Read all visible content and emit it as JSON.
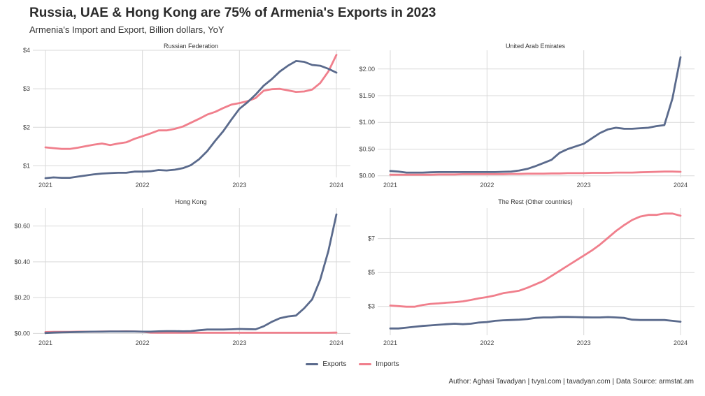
{
  "title": "Russia, UAE & Hong Kong are 75% of Armenia's Exports in 2023",
  "subtitle": "Armenia's Import and Export, Billion dollars, YoY",
  "caption": "Author: Aghasi Tavadyan   |   tvyal.com   |   tavadyan.com   |   Data Source: armstat.am",
  "legend": [
    {
      "name": "Exports",
      "color": "#5a6a8c"
    },
    {
      "name": "Imports",
      "color": "#f07f8c"
    }
  ],
  "chart_data": [
    {
      "type": "line",
      "title": "Russian Federation",
      "x": [
        2021,
        2021.083,
        2021.167,
        2021.25,
        2021.333,
        2021.417,
        2021.5,
        2021.583,
        2021.667,
        2021.75,
        2021.833,
        2021.917,
        2022,
        2022.083,
        2022.167,
        2022.25,
        2022.333,
        2022.417,
        2022.5,
        2022.583,
        2022.667,
        2022.75,
        2022.833,
        2022.917,
        2023,
        2023.083,
        2023.167,
        2023.25,
        2023.333,
        2023.417,
        2023.5,
        2023.583,
        2023.667,
        2023.75,
        2023.833,
        2023.917,
        2024
      ],
      "xticks": [
        "2021",
        "2022",
        "2023",
        "2024"
      ],
      "ylim": [
        0.7,
        4.0
      ],
      "yticks": [
        1,
        2,
        3,
        4
      ],
      "ytick_labels": [
        "$1",
        "$2",
        "$3",
        "$4"
      ],
      "series": [
        {
          "name": "Exports",
          "values": [
            0.68,
            0.7,
            0.69,
            0.69,
            0.72,
            0.75,
            0.78,
            0.8,
            0.81,
            0.82,
            0.82,
            0.85,
            0.85,
            0.86,
            0.89,
            0.88,
            0.9,
            0.94,
            1.02,
            1.17,
            1.38,
            1.65,
            1.9,
            2.2,
            2.48,
            2.65,
            2.85,
            3.08,
            3.25,
            3.45,
            3.6,
            3.72,
            3.7,
            3.62,
            3.6,
            3.52,
            3.42
          ]
        },
        {
          "name": "Imports",
          "values": [
            1.48,
            1.46,
            1.44,
            1.44,
            1.47,
            1.51,
            1.55,
            1.58,
            1.54,
            1.58,
            1.61,
            1.7,
            1.77,
            1.84,
            1.92,
            1.92,
            1.96,
            2.02,
            2.12,
            2.22,
            2.33,
            2.4,
            2.5,
            2.59,
            2.63,
            2.68,
            2.76,
            2.95,
            2.99,
            3.0,
            2.96,
            2.92,
            2.93,
            2.98,
            3.15,
            3.45,
            3.88
          ]
        }
      ]
    },
    {
      "type": "line",
      "title": "United Arab Emirates",
      "x": [
        2021,
        2021.083,
        2021.167,
        2021.25,
        2021.333,
        2021.417,
        2021.5,
        2021.583,
        2021.667,
        2021.75,
        2021.833,
        2021.917,
        2022,
        2022.083,
        2022.167,
        2022.25,
        2022.333,
        2022.417,
        2022.5,
        2022.583,
        2022.667,
        2022.75,
        2022.833,
        2022.917,
        2023,
        2023.083,
        2023.167,
        2023.25,
        2023.333,
        2023.417,
        2023.5,
        2023.583,
        2023.667,
        2023.75,
        2023.833,
        2023.917,
        2024
      ],
      "xticks": [
        "2021",
        "2022",
        "2023",
        "2024"
      ],
      "ylim": [
        -0.03,
        2.35
      ],
      "yticks": [
        0,
        0.5,
        1.0,
        1.5,
        2.0
      ],
      "ytick_labels": [
        "$0.00",
        "$0.50",
        "$1.00",
        "$1.50",
        "$2.00"
      ],
      "series": [
        {
          "name": "Exports",
          "values": [
            0.09,
            0.08,
            0.06,
            0.06,
            0.06,
            0.065,
            0.07,
            0.07,
            0.07,
            0.07,
            0.07,
            0.07,
            0.07,
            0.07,
            0.075,
            0.08,
            0.1,
            0.13,
            0.18,
            0.24,
            0.3,
            0.43,
            0.5,
            0.55,
            0.6,
            0.7,
            0.8,
            0.87,
            0.9,
            0.88,
            0.88,
            0.89,
            0.9,
            0.93,
            0.95,
            1.45,
            2.22
          ]
        },
        {
          "name": "Imports",
          "values": [
            0.02,
            0.02,
            0.02,
            0.02,
            0.02,
            0.02,
            0.025,
            0.025,
            0.025,
            0.03,
            0.03,
            0.03,
            0.03,
            0.03,
            0.03,
            0.035,
            0.035,
            0.04,
            0.04,
            0.04,
            0.045,
            0.045,
            0.05,
            0.05,
            0.05,
            0.055,
            0.055,
            0.055,
            0.06,
            0.06,
            0.06,
            0.065,
            0.07,
            0.075,
            0.08,
            0.08,
            0.075
          ]
        }
      ]
    },
    {
      "type": "line",
      "title": "Hong Kong",
      "x": [
        2021,
        2021.083,
        2021.167,
        2021.25,
        2021.333,
        2021.417,
        2021.5,
        2021.583,
        2021.667,
        2021.75,
        2021.833,
        2021.917,
        2022,
        2022.083,
        2022.167,
        2022.25,
        2022.333,
        2022.417,
        2022.5,
        2022.583,
        2022.667,
        2022.75,
        2022.833,
        2022.917,
        2023,
        2023.083,
        2023.167,
        2023.25,
        2023.333,
        2023.417,
        2023.5,
        2023.583,
        2023.667,
        2023.75,
        2023.833,
        2023.917,
        2024
      ],
      "xticks": [
        "2021",
        "2022",
        "2023",
        "2024"
      ],
      "ylim": [
        -0.01,
        0.7
      ],
      "yticks": [
        0,
        0.2,
        0.4,
        0.6
      ],
      "ytick_labels": [
        "$0.00",
        "$0.20",
        "$0.40",
        "$0.60"
      ],
      "series": [
        {
          "name": "Exports",
          "values": [
            0.003,
            0.005,
            0.006,
            0.007,
            0.008,
            0.009,
            0.01,
            0.01,
            0.011,
            0.011,
            0.011,
            0.011,
            0.01,
            0.01,
            0.012,
            0.013,
            0.013,
            0.012,
            0.013,
            0.018,
            0.022,
            0.022,
            0.022,
            0.023,
            0.025,
            0.024,
            0.023,
            0.04,
            0.065,
            0.085,
            0.095,
            0.1,
            0.14,
            0.19,
            0.3,
            0.46,
            0.665
          ]
        },
        {
          "name": "Imports",
          "values": [
            0.008,
            0.009,
            0.009,
            0.009,
            0.01,
            0.01,
            0.01,
            0.011,
            0.011,
            0.011,
            0.012,
            0.011,
            0.01,
            0.005,
            0.004,
            0.004,
            0.004,
            0.004,
            0.004,
            0.004,
            0.004,
            0.004,
            0.004,
            0.004,
            0.004,
            0.004,
            0.004,
            0.004,
            0.004,
            0.004,
            0.004,
            0.004,
            0.004,
            0.004,
            0.004,
            0.004,
            0.005
          ]
        }
      ]
    },
    {
      "type": "line",
      "title": "The Rest (Other countries)",
      "x": [
        2021,
        2021.083,
        2021.167,
        2021.25,
        2021.333,
        2021.417,
        2021.5,
        2021.583,
        2021.667,
        2021.75,
        2021.833,
        2021.917,
        2022,
        2022.083,
        2022.167,
        2022.25,
        2022.333,
        2022.417,
        2022.5,
        2022.583,
        2022.667,
        2022.75,
        2022.833,
        2022.917,
        2023,
        2023.083,
        2023.167,
        2023.25,
        2023.333,
        2023.417,
        2023.5,
        2023.583,
        2023.667,
        2023.75,
        2023.833,
        2023.917,
        2024
      ],
      "xticks": [
        "2021",
        "2022",
        "2023",
        "2024"
      ],
      "ylim": [
        1.3,
        8.8
      ],
      "yticks": [
        3,
        5,
        7
      ],
      "ytick_labels": [
        "$3",
        "$5",
        "$7"
      ],
      "series": [
        {
          "name": "Exports",
          "values": [
            1.7,
            1.7,
            1.75,
            1.8,
            1.85,
            1.88,
            1.92,
            1.95,
            1.98,
            1.95,
            1.98,
            2.05,
            2.08,
            2.15,
            2.18,
            2.2,
            2.22,
            2.25,
            2.32,
            2.35,
            2.35,
            2.38,
            2.38,
            2.37,
            2.36,
            2.35,
            2.35,
            2.37,
            2.35,
            2.32,
            2.22,
            2.2,
            2.2,
            2.2,
            2.2,
            2.15,
            2.1
          ]
        },
        {
          "name": "Imports",
          "values": [
            3.05,
            3.02,
            2.98,
            2.98,
            3.08,
            3.15,
            3.18,
            3.22,
            3.25,
            3.3,
            3.38,
            3.48,
            3.55,
            3.65,
            3.78,
            3.85,
            3.93,
            4.1,
            4.3,
            4.5,
            4.8,
            5.1,
            5.4,
            5.7,
            6.0,
            6.3,
            6.65,
            7.05,
            7.45,
            7.8,
            8.1,
            8.3,
            8.4,
            8.4,
            8.48,
            8.48,
            8.35
          ]
        }
      ]
    }
  ]
}
